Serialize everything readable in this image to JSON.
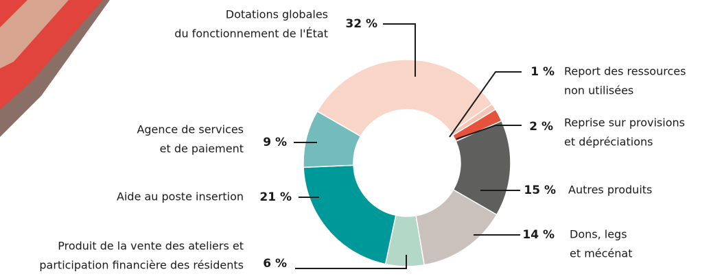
{
  "chart_data": {
    "type": "donut",
    "categories": [
      [
        "Dotations globales",
        "du fonctionnement de l'État"
      ],
      [
        "Report des ressources",
        "non utilisées"
      ],
      [
        "Reprise sur provisions",
        "et dépréciations"
      ],
      [
        "Autres produits"
      ],
      [
        "Dons, legs",
        "et mécénat"
      ],
      [
        "Produit de la vente des ateliers et",
        "participation financière des résidents"
      ],
      [
        "Aide au poste insertion"
      ],
      [
        "Agence de services",
        "et de paiement"
      ]
    ],
    "values": [
      32,
      1,
      2,
      15,
      14,
      6,
      21,
      9
    ],
    "value_labels": [
      "32 %",
      "1 %",
      "2 %",
      "15 %",
      "14 %",
      "6 %",
      "21 %",
      "9 %"
    ],
    "colors": [
      "#f9d5c7",
      "#f6c6b4",
      "#e5533c",
      "#5f5f5d",
      "#cac0bc",
      "#b4d8c8",
      "#00999a",
      "#73bcbb"
    ]
  }
}
